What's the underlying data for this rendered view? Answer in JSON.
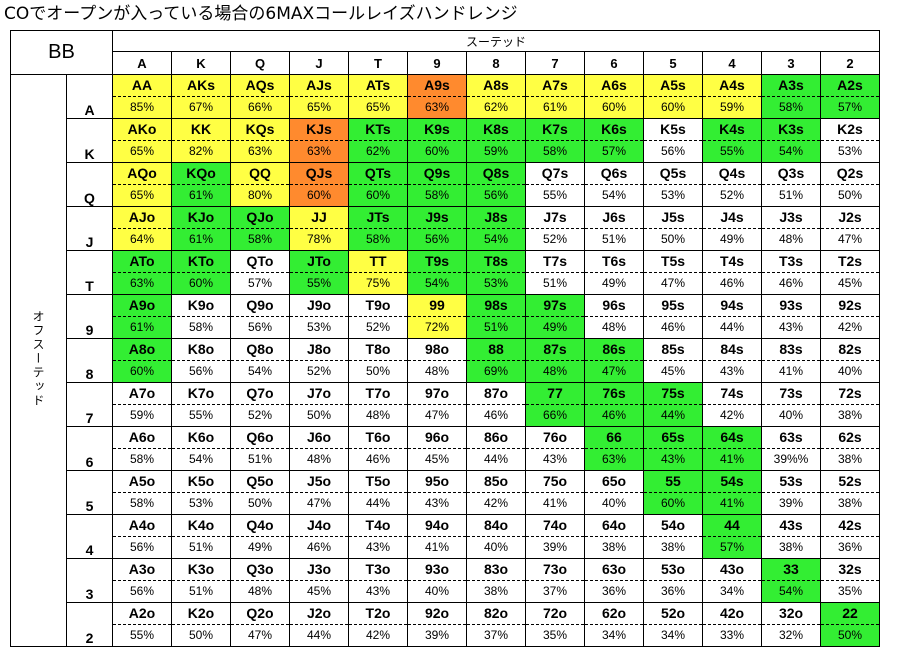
{
  "title": "COでオープンが入っている場合の6MAXコールレイズハンドレンジ",
  "corner_label": "BB",
  "suited_label": "スーテッド",
  "offsuit_label": "オフスーテッド",
  "ranks": [
    "A",
    "K",
    "Q",
    "J",
    "T",
    "9",
    "8",
    "7",
    "6",
    "5",
    "4",
    "3",
    "2"
  ],
  "colors": {
    "Y": "#ffff44",
    "O": "#ff8a2e",
    "G": "#33ee33",
    "W": "#ffffff"
  },
  "rows": [
    {
      "rank": "A",
      "cells": [
        {
          "hand": "AA",
          "pct": "85%",
          "color": "Y"
        },
        {
          "hand": "AKs",
          "pct": "67%",
          "color": "Y"
        },
        {
          "hand": "AQs",
          "pct": "66%",
          "color": "Y"
        },
        {
          "hand": "AJs",
          "pct": "65%",
          "color": "Y"
        },
        {
          "hand": "ATs",
          "pct": "65%",
          "color": "Y"
        },
        {
          "hand": "A9s",
          "pct": "63%",
          "color": "O"
        },
        {
          "hand": "A8s",
          "pct": "62%",
          "color": "Y"
        },
        {
          "hand": "A7s",
          "pct": "61%",
          "color": "Y"
        },
        {
          "hand": "A6s",
          "pct": "60%",
          "color": "Y"
        },
        {
          "hand": "A5s",
          "pct": "60%",
          "color": "Y"
        },
        {
          "hand": "A4s",
          "pct": "59%",
          "color": "Y"
        },
        {
          "hand": "A3s",
          "pct": "58%",
          "color": "G"
        },
        {
          "hand": "A2s",
          "pct": "57%",
          "color": "G"
        }
      ]
    },
    {
      "rank": "K",
      "cells": [
        {
          "hand": "AKo",
          "pct": "65%",
          "color": "Y"
        },
        {
          "hand": "KK",
          "pct": "82%",
          "color": "Y"
        },
        {
          "hand": "KQs",
          "pct": "63%",
          "color": "Y"
        },
        {
          "hand": "KJs",
          "pct": "63%",
          "color": "O"
        },
        {
          "hand": "KTs",
          "pct": "62%",
          "color": "G"
        },
        {
          "hand": "K9s",
          "pct": "60%",
          "color": "G"
        },
        {
          "hand": "K8s",
          "pct": "59%",
          "color": "G"
        },
        {
          "hand": "K7s",
          "pct": "58%",
          "color": "G"
        },
        {
          "hand": "K6s",
          "pct": "57%",
          "color": "G"
        },
        {
          "hand": "K5s",
          "pct": "56%",
          "color": "W"
        },
        {
          "hand": "K4s",
          "pct": "55%",
          "color": "G"
        },
        {
          "hand": "K3s",
          "pct": "54%",
          "color": "G"
        },
        {
          "hand": "K2s",
          "pct": "53%",
          "color": "W"
        }
      ]
    },
    {
      "rank": "Q",
      "cells": [
        {
          "hand": "AQo",
          "pct": "65%",
          "color": "Y"
        },
        {
          "hand": "KQo",
          "pct": "61%",
          "color": "G"
        },
        {
          "hand": "QQ",
          "pct": "80%",
          "color": "Y"
        },
        {
          "hand": "QJs",
          "pct": "60%",
          "color": "O"
        },
        {
          "hand": "QTs",
          "pct": "60%",
          "color": "G"
        },
        {
          "hand": "Q9s",
          "pct": "58%",
          "color": "G"
        },
        {
          "hand": "Q8s",
          "pct": "56%",
          "color": "G"
        },
        {
          "hand": "Q7s",
          "pct": "55%",
          "color": "W"
        },
        {
          "hand": "Q6s",
          "pct": "54%",
          "color": "W"
        },
        {
          "hand": "Q5s",
          "pct": "53%",
          "color": "W"
        },
        {
          "hand": "Q4s",
          "pct": "52%",
          "color": "W"
        },
        {
          "hand": "Q3s",
          "pct": "51%",
          "color": "W"
        },
        {
          "hand": "Q2s",
          "pct": "50%",
          "color": "W"
        }
      ]
    },
    {
      "rank": "J",
      "cells": [
        {
          "hand": "AJo",
          "pct": "64%",
          "color": "Y"
        },
        {
          "hand": "KJo",
          "pct": "61%",
          "color": "G"
        },
        {
          "hand": "QJo",
          "pct": "58%",
          "color": "G"
        },
        {
          "hand": "JJ",
          "pct": "78%",
          "color": "Y"
        },
        {
          "hand": "JTs",
          "pct": "58%",
          "color": "G"
        },
        {
          "hand": "J9s",
          "pct": "56%",
          "color": "G"
        },
        {
          "hand": "J8s",
          "pct": "54%",
          "color": "G"
        },
        {
          "hand": "J7s",
          "pct": "52%",
          "color": "W"
        },
        {
          "hand": "J6s",
          "pct": "51%",
          "color": "W"
        },
        {
          "hand": "J5s",
          "pct": "50%",
          "color": "W"
        },
        {
          "hand": "J4s",
          "pct": "49%",
          "color": "W"
        },
        {
          "hand": "J3s",
          "pct": "48%",
          "color": "W"
        },
        {
          "hand": "J2s",
          "pct": "47%",
          "color": "W"
        }
      ]
    },
    {
      "rank": "T",
      "cells": [
        {
          "hand": "ATo",
          "pct": "63%",
          "color": "G"
        },
        {
          "hand": "KTo",
          "pct": "60%",
          "color": "G"
        },
        {
          "hand": "QTo",
          "pct": "57%",
          "color": "W"
        },
        {
          "hand": "JTo",
          "pct": "55%",
          "color": "G"
        },
        {
          "hand": "TT",
          "pct": "75%",
          "color": "Y"
        },
        {
          "hand": "T9s",
          "pct": "54%",
          "color": "G"
        },
        {
          "hand": "T8s",
          "pct": "53%",
          "color": "G"
        },
        {
          "hand": "T7s",
          "pct": "51%",
          "color": "W"
        },
        {
          "hand": "T6s",
          "pct": "49%",
          "color": "W"
        },
        {
          "hand": "T5s",
          "pct": "47%",
          "color": "W"
        },
        {
          "hand": "T4s",
          "pct": "46%",
          "color": "W"
        },
        {
          "hand": "T3s",
          "pct": "46%",
          "color": "W"
        },
        {
          "hand": "T2s",
          "pct": "45%",
          "color": "W"
        }
      ]
    },
    {
      "rank": "9",
      "cells": [
        {
          "hand": "A9o",
          "pct": "61%",
          "color": "G"
        },
        {
          "hand": "K9o",
          "pct": "58%",
          "color": "W"
        },
        {
          "hand": "Q9o",
          "pct": "56%",
          "color": "W"
        },
        {
          "hand": "J9o",
          "pct": "53%",
          "color": "W"
        },
        {
          "hand": "T9o",
          "pct": "52%",
          "color": "W"
        },
        {
          "hand": "99",
          "pct": "72%",
          "color": "Y"
        },
        {
          "hand": "98s",
          "pct": "51%",
          "color": "G"
        },
        {
          "hand": "97s",
          "pct": "49%",
          "color": "G"
        },
        {
          "hand": "96s",
          "pct": "48%",
          "color": "W"
        },
        {
          "hand": "95s",
          "pct": "46%",
          "color": "W"
        },
        {
          "hand": "94s",
          "pct": "44%",
          "color": "W"
        },
        {
          "hand": "93s",
          "pct": "43%",
          "color": "W"
        },
        {
          "hand": "92s",
          "pct": "42%",
          "color": "W"
        }
      ]
    },
    {
      "rank": "8",
      "cells": [
        {
          "hand": "A8o",
          "pct": "60%",
          "color": "G"
        },
        {
          "hand": "K8o",
          "pct": "56%",
          "color": "W"
        },
        {
          "hand": "Q8o",
          "pct": "54%",
          "color": "W"
        },
        {
          "hand": "J8o",
          "pct": "52%",
          "color": "W"
        },
        {
          "hand": "T8o",
          "pct": "50%",
          "color": "W"
        },
        {
          "hand": "98o",
          "pct": "48%",
          "color": "W"
        },
        {
          "hand": "88",
          "pct": "69%",
          "color": "G"
        },
        {
          "hand": "87s",
          "pct": "48%",
          "color": "G"
        },
        {
          "hand": "86s",
          "pct": "47%",
          "color": "G"
        },
        {
          "hand": "85s",
          "pct": "45%",
          "color": "W"
        },
        {
          "hand": "84s",
          "pct": "43%",
          "color": "W"
        },
        {
          "hand": "83s",
          "pct": "41%",
          "color": "W"
        },
        {
          "hand": "82s",
          "pct": "40%",
          "color": "W"
        }
      ]
    },
    {
      "rank": "7",
      "cells": [
        {
          "hand": "A7o",
          "pct": "59%",
          "color": "W"
        },
        {
          "hand": "K7o",
          "pct": "55%",
          "color": "W"
        },
        {
          "hand": "Q7o",
          "pct": "52%",
          "color": "W"
        },
        {
          "hand": "J7o",
          "pct": "50%",
          "color": "W"
        },
        {
          "hand": "T7o",
          "pct": "48%",
          "color": "W"
        },
        {
          "hand": "97o",
          "pct": "47%",
          "color": "W"
        },
        {
          "hand": "87o",
          "pct": "46%",
          "color": "W"
        },
        {
          "hand": "77",
          "pct": "66%",
          "color": "G"
        },
        {
          "hand": "76s",
          "pct": "46%",
          "color": "G"
        },
        {
          "hand": "75s",
          "pct": "44%",
          "color": "G"
        },
        {
          "hand": "74s",
          "pct": "42%",
          "color": "W"
        },
        {
          "hand": "73s",
          "pct": "40%",
          "color": "W"
        },
        {
          "hand": "72s",
          "pct": "38%",
          "color": "W"
        }
      ]
    },
    {
      "rank": "6",
      "cells": [
        {
          "hand": "A6o",
          "pct": "58%",
          "color": "W"
        },
        {
          "hand": "K6o",
          "pct": "54%",
          "color": "W"
        },
        {
          "hand": "Q6o",
          "pct": "51%",
          "color": "W"
        },
        {
          "hand": "J6o",
          "pct": "48%",
          "color": "W"
        },
        {
          "hand": "T6o",
          "pct": "46%",
          "color": "W"
        },
        {
          "hand": "96o",
          "pct": "45%",
          "color": "W"
        },
        {
          "hand": "86o",
          "pct": "44%",
          "color": "W"
        },
        {
          "hand": "76o",
          "pct": "43%",
          "color": "W"
        },
        {
          "hand": "66",
          "pct": "63%",
          "color": "G"
        },
        {
          "hand": "65s",
          "pct": "43%",
          "color": "G"
        },
        {
          "hand": "64s",
          "pct": "41%",
          "color": "G"
        },
        {
          "hand": "63s",
          "pct": "39%%",
          "color": "W"
        },
        {
          "hand": "62s",
          "pct": "38%",
          "color": "W"
        }
      ]
    },
    {
      "rank": "5",
      "cells": [
        {
          "hand": "A5o",
          "pct": "58%",
          "color": "W"
        },
        {
          "hand": "K5o",
          "pct": "53%",
          "color": "W"
        },
        {
          "hand": "Q5o",
          "pct": "50%",
          "color": "W"
        },
        {
          "hand": "J5o",
          "pct": "47%",
          "color": "W"
        },
        {
          "hand": "T5o",
          "pct": "44%",
          "color": "W"
        },
        {
          "hand": "95o",
          "pct": "43%",
          "color": "W"
        },
        {
          "hand": "85o",
          "pct": "42%",
          "color": "W"
        },
        {
          "hand": "75o",
          "pct": "41%",
          "color": "W"
        },
        {
          "hand": "65o",
          "pct": "40%",
          "color": "W"
        },
        {
          "hand": "55",
          "pct": "60%",
          "color": "G"
        },
        {
          "hand": "54s",
          "pct": "41%",
          "color": "G"
        },
        {
          "hand": "53s",
          "pct": "39%",
          "color": "W"
        },
        {
          "hand": "52s",
          "pct": "38%",
          "color": "W"
        }
      ]
    },
    {
      "rank": "4",
      "cells": [
        {
          "hand": "A4o",
          "pct": "56%",
          "color": "W"
        },
        {
          "hand": "K4o",
          "pct": "51%",
          "color": "W"
        },
        {
          "hand": "Q4o",
          "pct": "49%",
          "color": "W"
        },
        {
          "hand": "J4o",
          "pct": "46%",
          "color": "W"
        },
        {
          "hand": "T4o",
          "pct": "43%",
          "color": "W"
        },
        {
          "hand": "94o",
          "pct": "41%",
          "color": "W"
        },
        {
          "hand": "84o",
          "pct": "40%",
          "color": "W"
        },
        {
          "hand": "74o",
          "pct": "39%",
          "color": "W"
        },
        {
          "hand": "64o",
          "pct": "38%",
          "color": "W"
        },
        {
          "hand": "54o",
          "pct": "38%",
          "color": "W"
        },
        {
          "hand": "44",
          "pct": "57%",
          "color": "G"
        },
        {
          "hand": "43s",
          "pct": "38%",
          "color": "W"
        },
        {
          "hand": "42s",
          "pct": "36%",
          "color": "W"
        }
      ]
    },
    {
      "rank": "3",
      "cells": [
        {
          "hand": "A3o",
          "pct": "56%",
          "color": "W"
        },
        {
          "hand": "K3o",
          "pct": "51%",
          "color": "W"
        },
        {
          "hand": "Q3o",
          "pct": "48%",
          "color": "W"
        },
        {
          "hand": "J3o",
          "pct": "45%",
          "color": "W"
        },
        {
          "hand": "T3o",
          "pct": "43%",
          "color": "W"
        },
        {
          "hand": "93o",
          "pct": "40%",
          "color": "W"
        },
        {
          "hand": "83o",
          "pct": "38%",
          "color": "W"
        },
        {
          "hand": "73o",
          "pct": "37%",
          "color": "W"
        },
        {
          "hand": "63o",
          "pct": "36%",
          "color": "W"
        },
        {
          "hand": "53o",
          "pct": "36%",
          "color": "W"
        },
        {
          "hand": "43o",
          "pct": "34%",
          "color": "W"
        },
        {
          "hand": "33",
          "pct": "54%",
          "color": "G"
        },
        {
          "hand": "32s",
          "pct": "35%",
          "color": "W"
        }
      ]
    },
    {
      "rank": "2",
      "cells": [
        {
          "hand": "A2o",
          "pct": "55%",
          "color": "W"
        },
        {
          "hand": "K2o",
          "pct": "50%",
          "color": "W"
        },
        {
          "hand": "Q2o",
          "pct": "47%",
          "color": "W"
        },
        {
          "hand": "J2o",
          "pct": "44%",
          "color": "W"
        },
        {
          "hand": "T2o",
          "pct": "42%",
          "color": "W"
        },
        {
          "hand": "92o",
          "pct": "39%",
          "color": "W"
        },
        {
          "hand": "82o",
          "pct": "37%",
          "color": "W"
        },
        {
          "hand": "72o",
          "pct": "35%",
          "color": "W"
        },
        {
          "hand": "62o",
          "pct": "34%",
          "color": "W"
        },
        {
          "hand": "52o",
          "pct": "34%",
          "color": "W"
        },
        {
          "hand": "42o",
          "pct": "33%",
          "color": "W"
        },
        {
          "hand": "32o",
          "pct": "32%",
          "color": "W"
        },
        {
          "hand": "22",
          "pct": "50%",
          "color": "G"
        }
      ]
    }
  ]
}
